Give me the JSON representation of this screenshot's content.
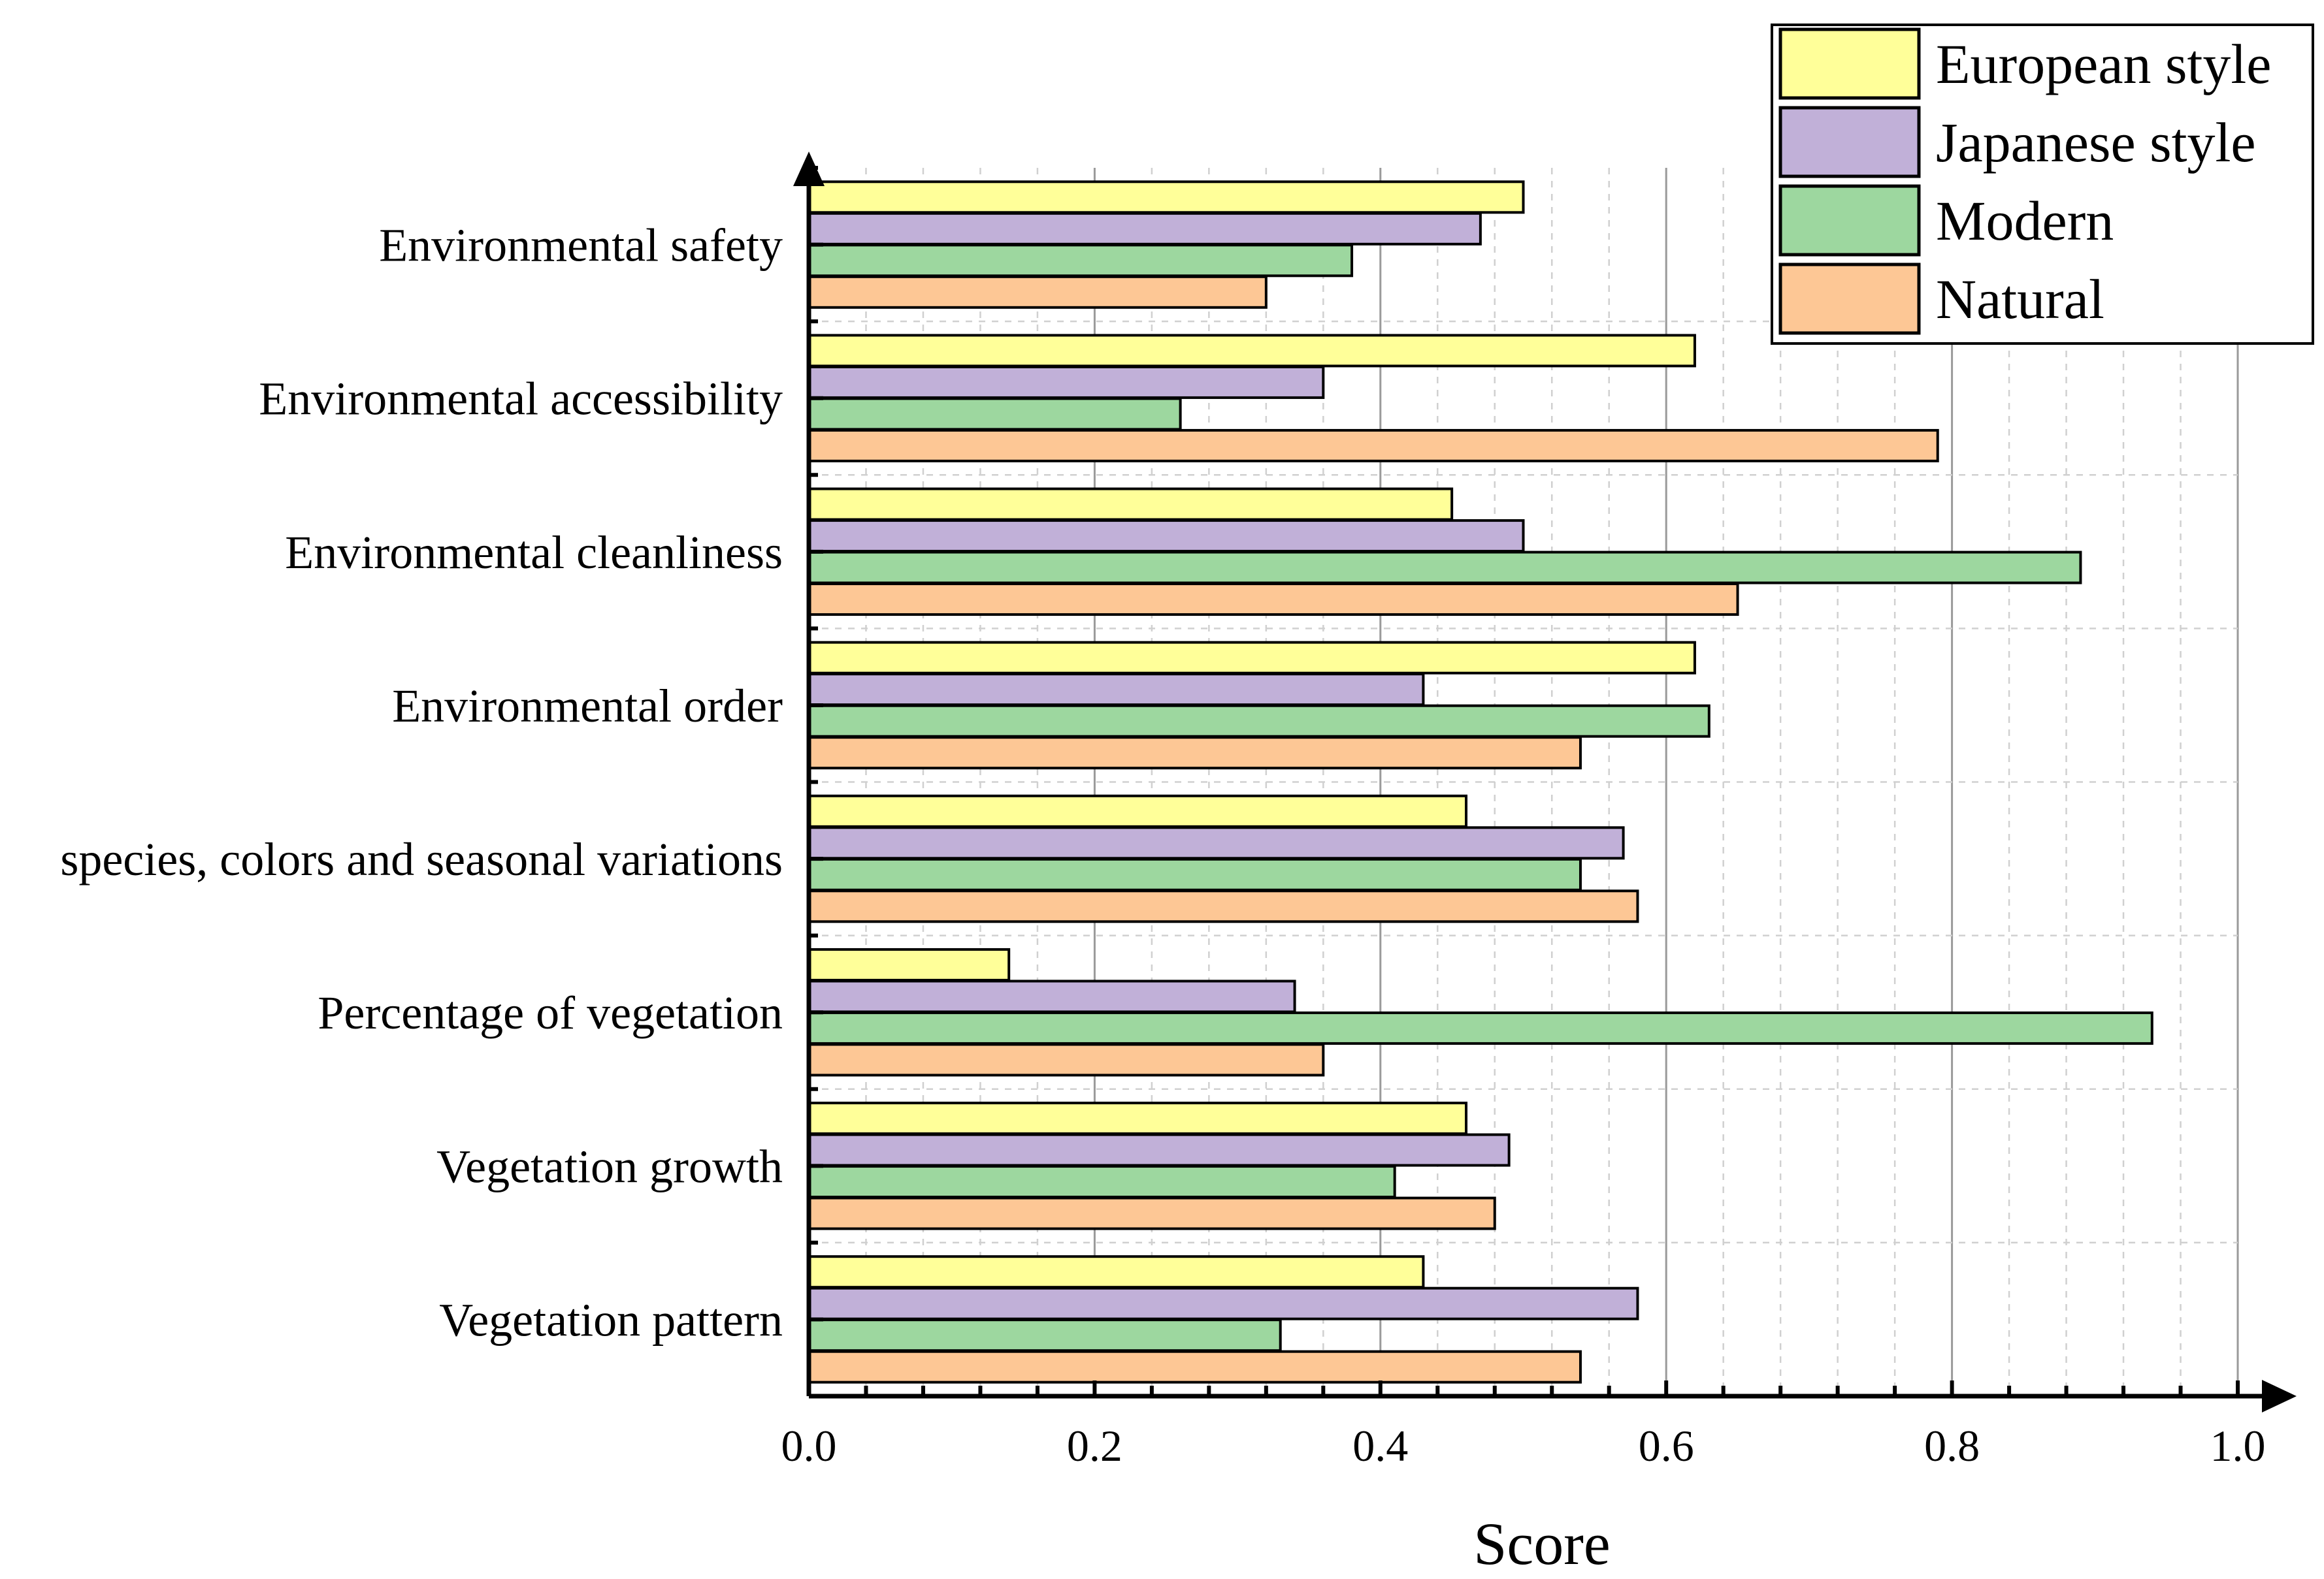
{
  "chart_data": {
    "type": "bar",
    "orientation": "horizontal",
    "title": "",
    "xlabel": "Score",
    "ylabel": "",
    "xlim": [
      0.0,
      1.0
    ],
    "x_ticks": [
      "0.0",
      "0.2",
      "0.4",
      "0.6",
      "0.8",
      "1.0"
    ],
    "grid": true,
    "legend_position": "top-right",
    "categories": [
      "Environmental safety",
      "Environmental accessibility",
      "Environmental cleanliness",
      "Environmental order",
      "species, colors and seasonal variations",
      "Percentage of vegetation",
      "Vegetation growth",
      "Vegetation pattern"
    ],
    "series": [
      {
        "name": "European style",
        "color": "#ffff99",
        "values": [
          0.5,
          0.62,
          0.45,
          0.62,
          0.46,
          0.14,
          0.46,
          0.43
        ]
      },
      {
        "name": "Japanese style",
        "color": "#c1b0d8",
        "values": [
          0.47,
          0.36,
          0.5,
          0.43,
          0.57,
          0.34,
          0.49,
          0.58
        ]
      },
      {
        "name": "Modern",
        "color": "#9dd79f",
        "values": [
          0.38,
          0.26,
          0.89,
          0.63,
          0.54,
          0.94,
          0.41,
          0.33
        ]
      },
      {
        "name": "Natural",
        "color": "#fdc795",
        "values": [
          0.32,
          0.79,
          0.65,
          0.54,
          0.58,
          0.36,
          0.48,
          0.54
        ]
      }
    ]
  }
}
